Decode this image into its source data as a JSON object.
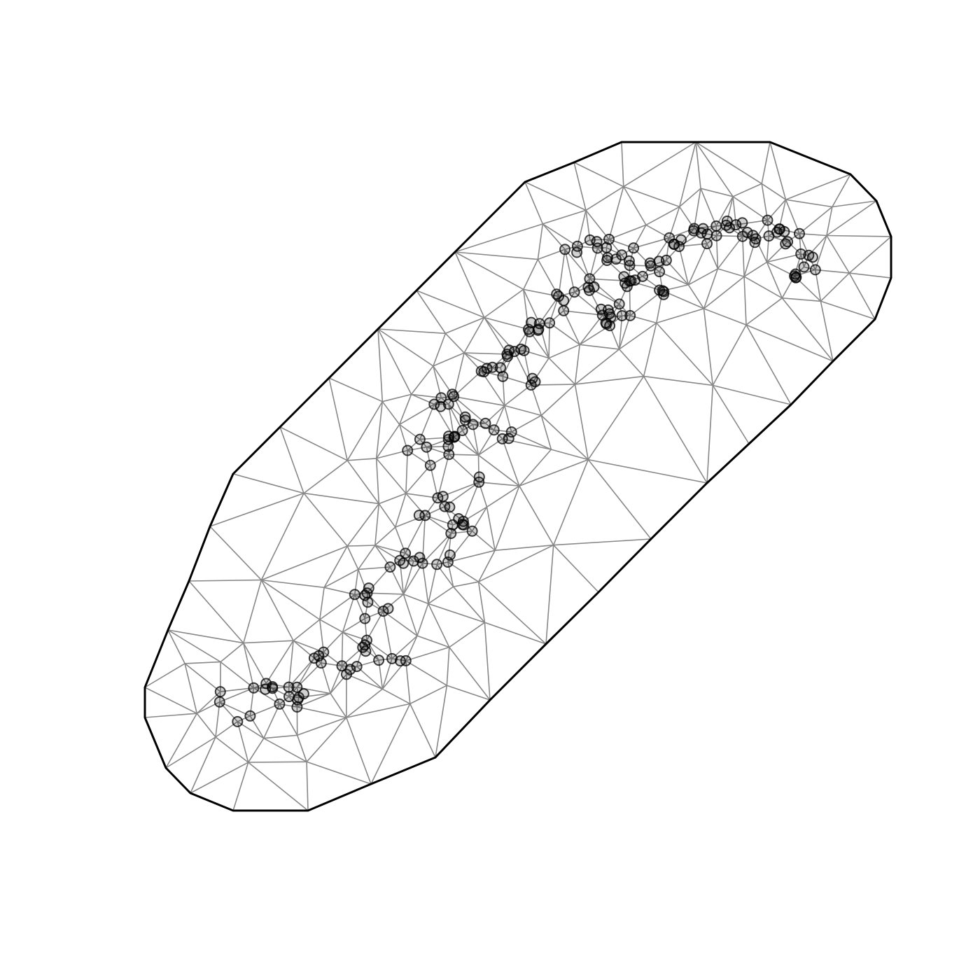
{
  "figure": {
    "type": "triangulated-mesh-with-observations",
    "colors": {
      "background": "#ffffff",
      "mesh_edge": "#888888",
      "boundary": "#000000",
      "point": "#000000"
    }
  }
}
